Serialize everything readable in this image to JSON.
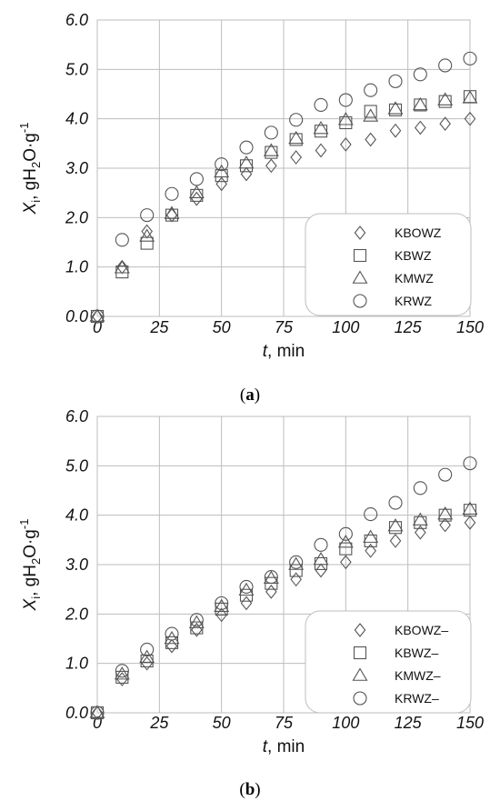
{
  "chart_data": [
    {
      "type": "scatter",
      "panel_label": "a",
      "xlabel_var": "t",
      "xlabel_unit": ", min",
      "ylabel": "X_i, gH2O·g-1",
      "ylabel_parts": {
        "var": "X",
        "sub": "i",
        "rest1": ", gH",
        "sub2": "2",
        "rest2": "O·g",
        "sup": "-1"
      },
      "xlim": [
        0,
        150
      ],
      "ylim": [
        0,
        6
      ],
      "xticks": [
        "0",
        "25",
        "50",
        "75",
        "100",
        "125",
        "150"
      ],
      "yticks": [
        "0.0",
        "1.0",
        "2.0",
        "3.0",
        "4.0",
        "5.0",
        "6.0"
      ],
      "grid": true,
      "legend_position": "bottom-right",
      "series": [
        {
          "name": "KBOWZ",
          "marker": "diamond",
          "x": [
            0,
            10,
            20,
            30,
            40,
            50,
            60,
            70,
            80,
            90,
            100,
            110,
            120,
            130,
            140,
            150
          ],
          "y": [
            0.0,
            1.0,
            1.72,
            2.05,
            2.38,
            2.68,
            2.88,
            3.05,
            3.22,
            3.36,
            3.48,
            3.58,
            3.76,
            3.82,
            3.9,
            4.0
          ]
        },
        {
          "name": "KBWZ",
          "marker": "square",
          "x": [
            0,
            10,
            20,
            30,
            40,
            50,
            60,
            70,
            80,
            90,
            100,
            110,
            120,
            130,
            140,
            150
          ],
          "y": [
            0.0,
            0.9,
            1.48,
            2.05,
            2.45,
            2.85,
            3.05,
            3.32,
            3.58,
            3.75,
            3.92,
            4.15,
            4.18,
            4.28,
            4.35,
            4.45
          ]
        },
        {
          "name": "KMWZ",
          "marker": "triangle",
          "x": [
            0,
            10,
            20,
            30,
            40,
            50,
            60,
            70,
            80,
            90,
            100,
            110,
            120,
            130,
            140,
            150
          ],
          "y": [
            0.0,
            0.98,
            1.62,
            2.08,
            2.5,
            2.92,
            3.1,
            3.35,
            3.6,
            3.8,
            3.98,
            4.05,
            4.2,
            4.28,
            4.38,
            4.42
          ]
        },
        {
          "name": "KRWZ",
          "marker": "circle",
          "x": [
            0,
            10,
            20,
            30,
            40,
            50,
            60,
            70,
            80,
            90,
            100,
            110,
            120,
            130,
            140,
            150
          ],
          "y": [
            0.0,
            1.55,
            2.05,
            2.48,
            2.78,
            3.08,
            3.42,
            3.72,
            3.98,
            4.28,
            4.38,
            4.58,
            4.76,
            4.9,
            5.08,
            5.22
          ]
        }
      ]
    },
    {
      "type": "scatter",
      "panel_label": "b",
      "xlabel_var": "t",
      "xlabel_unit": ", min",
      "ylabel": "X_i, gH2O·g-1",
      "ylabel_parts": {
        "var": "X",
        "sub": "i",
        "rest1": ", gH",
        "sub2": "2",
        "rest2": "O·g",
        "sup": "-1"
      },
      "xlim": [
        0,
        150
      ],
      "ylim": [
        0,
        6
      ],
      "xticks": [
        "0",
        "25",
        "50",
        "75",
        "100",
        "125",
        "150"
      ],
      "yticks": [
        "0.0",
        "1.0",
        "2.0",
        "3.0",
        "4.0",
        "5.0",
        "6.0"
      ],
      "grid": true,
      "legend_position": "bottom-right",
      "series": [
        {
          "name": "KBOWZ–",
          "marker": "diamond",
          "x": [
            0,
            10,
            20,
            30,
            40,
            50,
            60,
            70,
            80,
            90,
            100,
            110,
            120,
            130,
            140,
            150
          ],
          "y": [
            0.0,
            0.68,
            1.0,
            1.35,
            1.68,
            1.98,
            2.22,
            2.45,
            2.7,
            2.88,
            3.05,
            3.28,
            3.48,
            3.65,
            3.8,
            3.85
          ]
        },
        {
          "name": "KBWZ–",
          "marker": "square",
          "x": [
            0,
            10,
            20,
            30,
            40,
            50,
            60,
            70,
            80,
            90,
            100,
            110,
            120,
            130,
            140,
            150
          ],
          "y": [
            0.0,
            0.72,
            1.05,
            1.42,
            1.72,
            2.1,
            2.38,
            2.62,
            2.88,
            3.02,
            3.32,
            3.48,
            3.75,
            3.85,
            4.0,
            4.1
          ]
        },
        {
          "name": "KMWZ–",
          "marker": "triangle",
          "x": [
            0,
            10,
            20,
            30,
            40,
            50,
            60,
            70,
            80,
            90,
            100,
            110,
            120,
            130,
            140,
            150
          ],
          "y": [
            0.0,
            0.78,
            1.12,
            1.5,
            1.82,
            2.15,
            2.48,
            2.72,
            3.0,
            3.1,
            3.45,
            3.55,
            3.78,
            3.9,
            4.02,
            4.12
          ]
        },
        {
          "name": "KRWZ–",
          "marker": "circle",
          "x": [
            0,
            10,
            20,
            30,
            40,
            50,
            60,
            70,
            80,
            90,
            100,
            110,
            120,
            130,
            140,
            150
          ],
          "y": [
            0.0,
            0.85,
            1.28,
            1.6,
            1.88,
            2.22,
            2.55,
            2.75,
            3.05,
            3.4,
            3.62,
            4.02,
            4.25,
            4.55,
            4.82,
            5.05
          ]
        }
      ]
    }
  ]
}
